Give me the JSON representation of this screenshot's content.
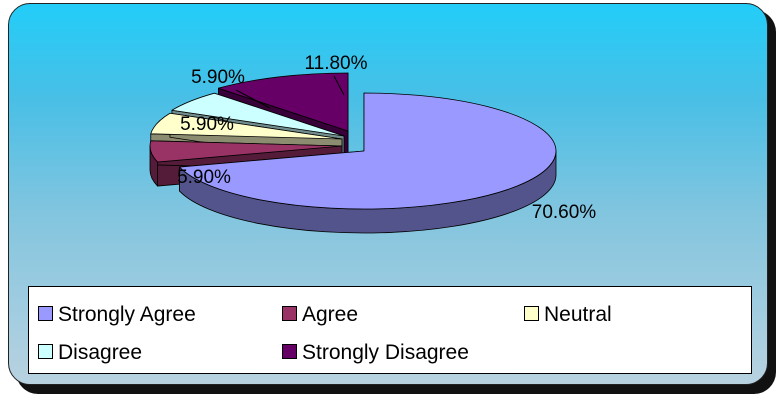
{
  "chart_data": {
    "type": "pie",
    "style": "3d-exploded",
    "title": "",
    "categories": [
      "Strongly Agree",
      "Agree",
      "Neutral",
      "Disagree",
      "Strongly Disagree"
    ],
    "values": [
      70.6,
      5.9,
      5.9,
      5.9,
      11.8
    ],
    "value_labels": [
      "70.60%",
      "5.90%",
      "5.90%",
      "5.90%",
      "11.80%"
    ],
    "colors": [
      "#9999ff",
      "#993366",
      "#ffffcc",
      "#ccffff",
      "#660066"
    ],
    "legend_position": "bottom",
    "background": "gradient sky-blue"
  }
}
